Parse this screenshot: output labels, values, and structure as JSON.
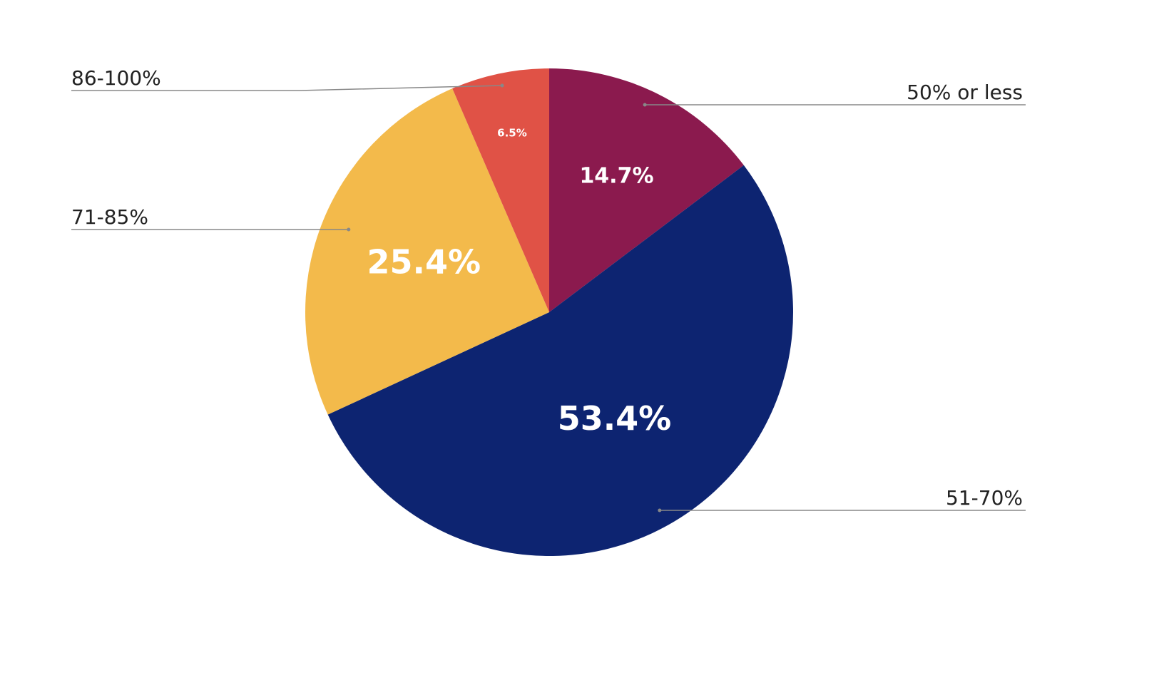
{
  "chart_data": {
    "type": "pie",
    "title": "",
    "start": "top",
    "direction": "clockwise",
    "slices": [
      {
        "label": "50% or less",
        "value": 14.7,
        "value_label": "14.7%",
        "color": "#8B1A4E"
      },
      {
        "label": "51-70%",
        "value": 53.4,
        "value_label": "53.4%",
        "color": "#0D2471"
      },
      {
        "label": "71-85%",
        "value": 25.4,
        "value_label": "25.4%",
        "color": "#F3BA4B"
      },
      {
        "label": "86-100%",
        "value": 6.5,
        "value_label": "6.5%",
        "color": "#E05246"
      }
    ],
    "legend": "callout labels"
  }
}
